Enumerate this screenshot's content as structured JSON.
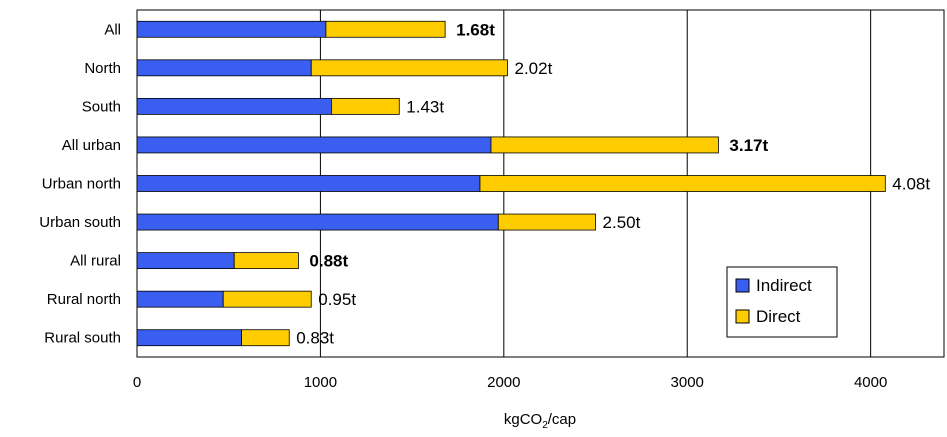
{
  "chart_data": {
    "type": "bar",
    "orientation": "horizontal",
    "stacked": true,
    "categories": [
      "All",
      "North",
      "South",
      "All urban",
      "Urban north",
      "Urban south",
      "All rural",
      "Rural north",
      "Rural south"
    ],
    "series": [
      {
        "name": "Indirect",
        "color": "#3A5EF0",
        "values": [
          1030,
          950,
          1060,
          1930,
          1870,
          1970,
          530,
          470,
          570
        ]
      },
      {
        "name": "Direct",
        "color": "#FFCC00",
        "values": [
          650,
          1070,
          370,
          1240,
          2210,
          530,
          350,
          480,
          260
        ]
      }
    ],
    "totals_labels": [
      "1.68t",
      "2.02t",
      "1.43t",
      "3.17t",
      "4.08t",
      "2.50t",
      "0.88t",
      "0.95t",
      "0.83t"
    ],
    "bold_totals": [
      true,
      false,
      false,
      true,
      false,
      false,
      true,
      false,
      false
    ],
    "x_ticks": [
      "0",
      "1000",
      "2000",
      "3000",
      "4000"
    ],
    "xlim": [
      0,
      4400
    ],
    "xlabel_main": "kgCO",
    "xlabel_sub": "2",
    "xlabel_suffix": "/cap",
    "grid": "vertical",
    "legend_position": "bottom-right"
  }
}
